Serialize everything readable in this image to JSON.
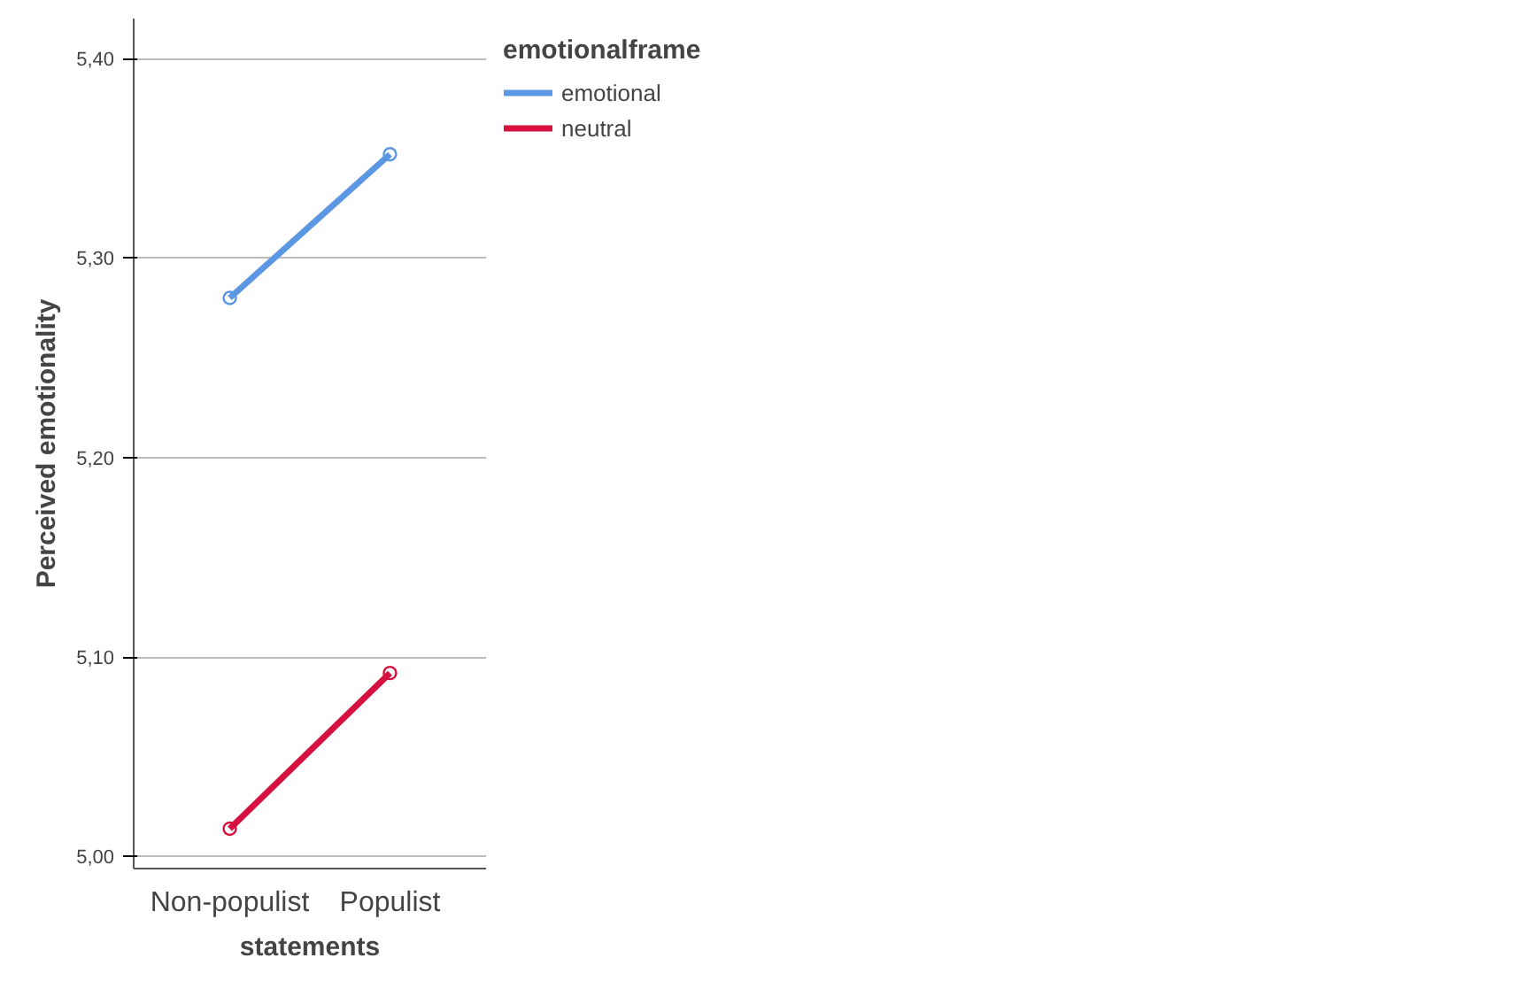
{
  "chart_data": {
    "type": "line",
    "xlabel": "statements",
    "ylabel": "Perceived emotionality",
    "legend_title": "emotionalframe",
    "categories": [
      "Non-populist",
      "Populist"
    ],
    "series": [
      {
        "name": "emotional",
        "color": "#5b97e2",
        "values": [
          5.28,
          5.352
        ]
      },
      {
        "name": "neutral",
        "color": "#d6113f",
        "values": [
          5.014,
          5.092
        ]
      }
    ],
    "ylim": [
      4.994,
      5.42
    ],
    "yticks": [
      {
        "value": 5.0,
        "label": "5,00"
      },
      {
        "value": 5.1,
        "label": "5,10"
      },
      {
        "value": 5.2,
        "label": "5,20"
      },
      {
        "value": 5.3,
        "label": "5,30"
      },
      {
        "value": 5.4,
        "label": "5,40"
      }
    ],
    "grid": "y",
    "legend": "top right",
    "marker": "circle",
    "line_style": "solid"
  }
}
